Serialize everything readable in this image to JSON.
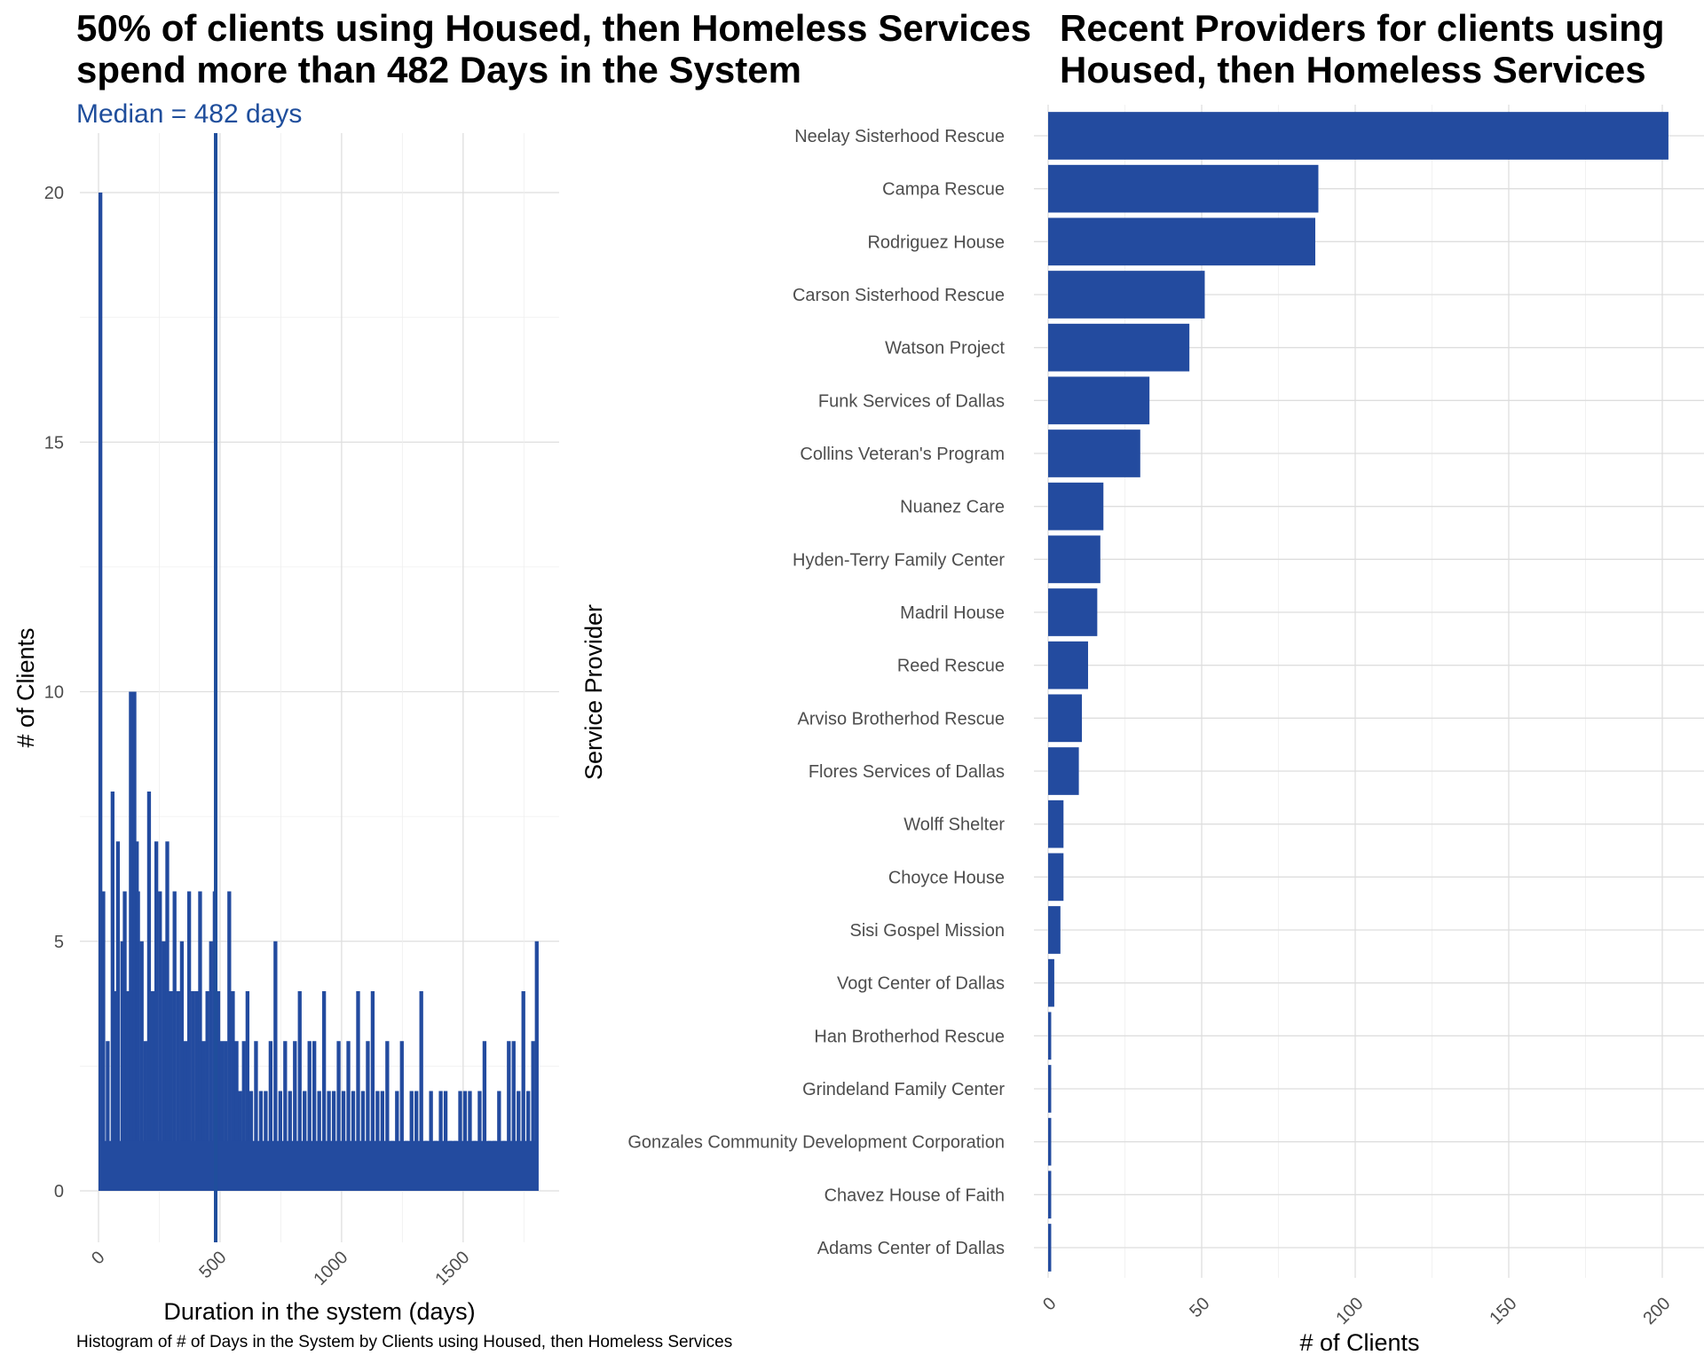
{
  "chart_data": [
    {
      "type": "bar",
      "title": "50% of clients using Housed, then Homeless Services\nspend more than 482 Days in the System",
      "subtitle": "Median = 482 days",
      "caption": "Histogram of # of Days in the System by Clients using Housed, then Homeless Services",
      "xlabel": "Duration in the system (days)",
      "ylabel": "# of Clients",
      "xlim": [
        0,
        1800
      ],
      "ylim": [
        0,
        20
      ],
      "xticks": [
        "0",
        "500",
        "1000",
        "1500"
      ],
      "yticks": [
        "0",
        "5",
        "10",
        "15",
        "20"
      ],
      "median_line": 482,
      "bar_color": "#234b9f",
      "median_color": "#1f4e9c",
      "x": [
        0,
        12,
        30,
        50,
        60,
        72,
        90,
        100,
        112,
        125,
        140,
        150,
        155,
        170,
        185,
        200,
        215,
        230,
        245,
        260,
        275,
        290,
        305,
        320,
        335,
        350,
        365,
        380,
        395,
        410,
        425,
        440,
        455,
        470,
        485,
        500,
        515,
        530,
        545,
        560,
        575,
        590,
        605,
        620,
        640,
        660,
        680,
        700,
        720,
        740,
        760,
        780,
        800,
        820,
        840,
        860,
        880,
        900,
        920,
        940,
        960,
        980,
        1000,
        1020,
        1040,
        1060,
        1080,
        1100,
        1120,
        1140,
        1160,
        1180,
        1200,
        1220,
        1240,
        1260,
        1280,
        1300,
        1320,
        1340,
        1360,
        1380,
        1400,
        1420,
        1440,
        1460,
        1480,
        1500,
        1520,
        1540,
        1560,
        1580,
        1600,
        1620,
        1640,
        1660,
        1680,
        1700,
        1720,
        1740,
        1760,
        1780,
        1795
      ],
      "values": [
        20,
        6,
        3,
        8,
        4,
        7,
        5,
        6,
        4,
        10,
        10,
        7,
        6,
        5,
        3,
        8,
        4,
        7,
        6,
        5,
        7,
        4,
        6,
        4,
        5,
        3,
        6,
        4,
        4,
        6,
        3,
        4,
        5,
        6,
        4,
        3,
        3,
        6,
        4,
        3,
        2,
        3,
        4,
        2,
        3,
        2,
        2,
        3,
        5,
        2,
        3,
        2,
        3,
        4,
        2,
        3,
        3,
        2,
        4,
        2,
        2,
        3,
        2,
        3,
        2,
        4,
        2,
        3,
        4,
        2,
        2,
        3,
        1,
        2,
        3,
        1,
        2,
        2,
        4,
        1,
        2,
        1,
        2,
        2,
        1,
        1,
        2,
        2,
        2,
        1,
        2,
        3,
        1,
        1,
        2,
        1,
        3,
        3,
        2,
        4,
        2,
        3,
        5
      ]
    },
    {
      "type": "bar",
      "orientation": "horizontal",
      "title": "Recent Providers for clients using\nHoused, then Homeless Services",
      "xlabel": "# of Clients",
      "ylabel": "Service Provider",
      "xlim": [
        0,
        205
      ],
      "xticks": [
        "0",
        "50",
        "100",
        "150",
        "200"
      ],
      "bar_color": "#234b9f",
      "categories": [
        "Neelay Sisterhood Rescue",
        "Campa Rescue",
        "Rodriguez House",
        "Carson Sisterhood Rescue",
        "Watson Project",
        "Funk Services of Dallas",
        "Collins Veteran's Program",
        "Nuanez Care",
        "Hyden-Terry Family Center",
        "Madril House",
        "Reed Rescue",
        "Arviso Brotherhod Rescue",
        "Flores Services of Dallas",
        "Wolff Shelter",
        "Choyce House",
        "Sisi Gospel Mission",
        "Vogt Center of Dallas",
        "Han Brotherhod Rescue",
        "Grindeland Family Center",
        "Gonzales Community Development Corporation",
        "Chavez House of Faith",
        "Adams Center of Dallas"
      ],
      "values": [
        202,
        88,
        87,
        51,
        46,
        33,
        30,
        18,
        17,
        16,
        13,
        11,
        10,
        5,
        5,
        4,
        2,
        1,
        1,
        1,
        1,
        1
      ]
    }
  ]
}
